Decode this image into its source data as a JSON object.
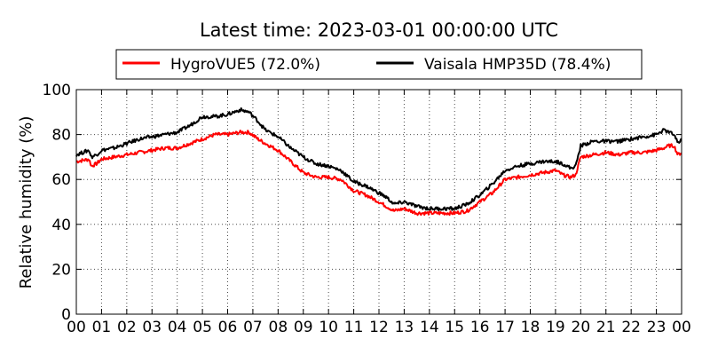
{
  "chart_data": {
    "type": "line",
    "title": "Latest time: 2023-03-01 00:00:00 UTC",
    "ylabel": "Relative humidity (%)",
    "xlabel": "",
    "xlim": [
      0,
      24
    ],
    "ylim": [
      0,
      100
    ],
    "grid": true,
    "legend_position": "top",
    "x_tick_labels": [
      "00",
      "01",
      "02",
      "03",
      "04",
      "05",
      "06",
      "07",
      "08",
      "09",
      "10",
      "11",
      "12",
      "13",
      "14",
      "15",
      "16",
      "17",
      "18",
      "19",
      "20",
      "21",
      "22",
      "23",
      "00"
    ],
    "y_tick_labels": [
      "0",
      "20",
      "40",
      "60",
      "80",
      "100"
    ],
    "y_ticks": [
      0,
      20,
      40,
      60,
      80,
      100
    ],
    "series": [
      {
        "name": "HygroVUE5 (72.0%)",
        "color": "#ff0000",
        "x": [
          0,
          0.5,
          0.6,
          0.8,
          1.0,
          1.5,
          2.0,
          2.5,
          3.0,
          3.5,
          4.0,
          4.5,
          5.0,
          5.5,
          6.0,
          6.5,
          6.85,
          7.2,
          7.5,
          8.0,
          8.5,
          9.0,
          9.5,
          10.0,
          10.5,
          11.0,
          11.5,
          12.0,
          12.3,
          12.6,
          13.0,
          13.5,
          14.0,
          14.5,
          15.0,
          15.5,
          16.0,
          16.5,
          17.0,
          17.5,
          18.0,
          18.5,
          19.0,
          19.3,
          19.6,
          19.8,
          20.0,
          20.5,
          21.0,
          21.5,
          22.0,
          22.5,
          23.0,
          23.3,
          23.5,
          23.7,
          23.85,
          24.0
        ],
        "values": [
          68,
          69,
          66,
          67,
          69,
          70,
          71,
          72,
          73,
          74,
          74,
          76,
          78,
          80,
          80,
          81,
          81,
          78,
          76,
          73,
          68,
          63,
          61,
          61,
          60,
          55,
          53,
          50,
          48,
          46,
          47,
          45,
          45,
          45,
          45,
          46,
          50,
          54,
          60,
          61,
          62,
          63,
          64,
          62,
          61,
          62,
          70,
          71,
          72,
          71,
          72,
          72,
          73,
          74,
          75,
          75,
          71,
          72
        ]
      },
      {
        "name": "Vaisala HMP35D (78.4%)",
        "color": "#000000",
        "x": [
          0,
          0.5,
          0.6,
          0.8,
          1.0,
          1.5,
          2.0,
          2.5,
          3.0,
          3.5,
          4.0,
          4.5,
          5.0,
          5.5,
          6.0,
          6.5,
          6.85,
          7.2,
          7.5,
          8.0,
          8.5,
          9.0,
          9.5,
          10.0,
          10.5,
          11.0,
          11.5,
          12.0,
          12.3,
          12.6,
          13.0,
          13.5,
          14.0,
          14.5,
          15.0,
          15.5,
          16.0,
          16.5,
          17.0,
          17.5,
          18.0,
          18.5,
          19.0,
          19.3,
          19.6,
          19.8,
          20.0,
          20.5,
          21.0,
          21.5,
          22.0,
          22.5,
          23.0,
          23.3,
          23.5,
          23.7,
          23.85,
          24.0
        ],
        "values": [
          71,
          73,
          70,
          71,
          73,
          74,
          76,
          78,
          79,
          80,
          81,
          84,
          88,
          88,
          89,
          91,
          90,
          86,
          82,
          79,
          74,
          70,
          67,
          66,
          64,
          59,
          57,
          54,
          52,
          49,
          50,
          48,
          47,
          47,
          47,
          49,
          53,
          58,
          64,
          66,
          67,
          68,
          68,
          67,
          65,
          66,
          75,
          77,
          77,
          77,
          78,
          79,
          80,
          82,
          81,
          80,
          76,
          78
        ]
      }
    ]
  }
}
